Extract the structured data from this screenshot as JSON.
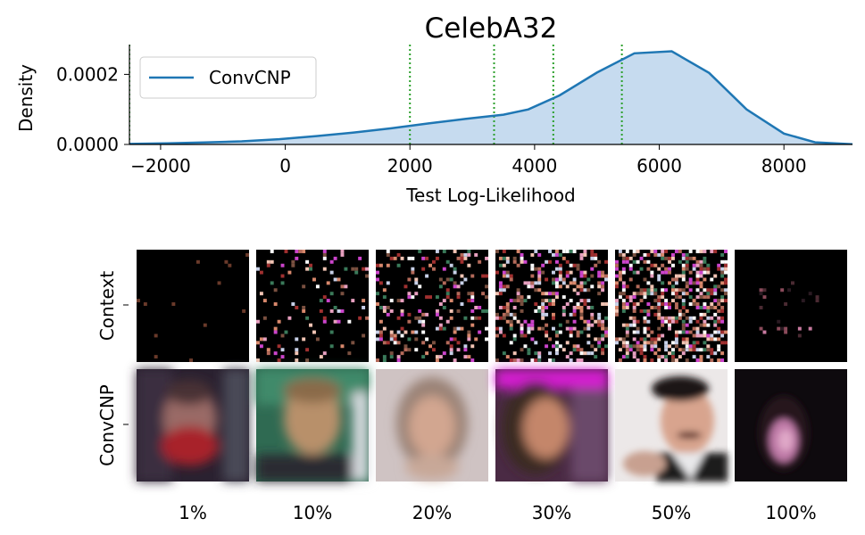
{
  "chart_data": {
    "type": "area",
    "title": "CelebA32",
    "xlabel": "Test Log-Likelihood",
    "ylabel": "Density",
    "xlim": [
      -2500,
      9100
    ],
    "ylim": [
      0,
      0.000285
    ],
    "xticks": [
      -2000,
      0,
      2000,
      4000,
      6000,
      8000
    ],
    "xtick_labels": [
      "−2000",
      "0",
      "2000",
      "4000",
      "6000",
      "8000"
    ],
    "yticks": [
      0,
      0.0002
    ],
    "ytick_labels": [
      "0.0000",
      "0.0002"
    ],
    "legend": "upper-left",
    "color": "#1f77b4",
    "fill_color": "#c6dbef",
    "marker_color": "#2ca02c",
    "series": [
      {
        "name": "ConvCNP",
        "x": [
          -2500,
          -1900,
          -1300,
          -700,
          -100,
          500,
          1100,
          1700,
          2300,
          2900,
          3500,
          3900,
          4400,
          5000,
          5600,
          6200,
          6800,
          7400,
          8000,
          8500,
          9100
        ],
        "y": [
          1.5e-06,
          3e-06,
          5.5e-06,
          9e-06,
          1.5e-05,
          2.4e-05,
          3.4e-05,
          4.6e-05,
          6e-05,
          7.3e-05,
          8.5e-05,
          0.0001,
          0.00014,
          0.000205,
          0.00026,
          0.000266,
          0.000204,
          0.0001,
          3.1e-05,
          6e-06,
          5e-07
        ]
      }
    ],
    "markers": [
      -2500,
      2000,
      3350,
      4300,
      5400
    ],
    "grid": false
  },
  "images_panel": {
    "row_labels": [
      "Context",
      "ConvCNP"
    ],
    "column_labels": [
      "1%",
      "10%",
      "20%",
      "30%",
      "50%",
      "100%"
    ],
    "context_densities": [
      0.01,
      0.1,
      0.2,
      0.3,
      0.5,
      1.0
    ]
  }
}
